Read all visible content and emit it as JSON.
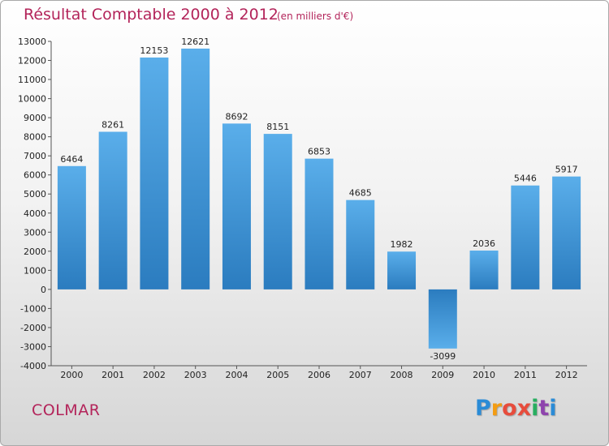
{
  "header": {
    "title": "Résultat Comptable 2000 à 2012",
    "subtitle": "(en milliers d'€)"
  },
  "footer": {
    "city": "COLMAR",
    "logo_letters": [
      "P",
      "r",
      "o",
      "x",
      "i",
      "t",
      "i"
    ],
    "logo_colors": [
      "#2a8bd6",
      "#f39c12",
      "#e74c3c",
      "#e74c3c",
      "#27ae60",
      "#8e44ad",
      "#2a8bd6"
    ]
  },
  "chart_data": {
    "type": "bar",
    "title": "Résultat Comptable 2000 à 2012",
    "subtitle": "(en milliers d'€)",
    "categories": [
      "2000",
      "2001",
      "2002",
      "2003",
      "2004",
      "2005",
      "2006",
      "2007",
      "2008",
      "2009",
      "2010",
      "2011",
      "2012"
    ],
    "values": [
      6464,
      8261,
      12153,
      12621,
      8692,
      8151,
      6853,
      4685,
      1982,
      -3099,
      2036,
      5446,
      5917
    ],
    "ylim": [
      -4000,
      13000
    ],
    "yticks": [
      13000,
      12000,
      11000,
      10000,
      9000,
      8000,
      7000,
      6000,
      5000,
      4000,
      3000,
      2000,
      1000,
      0,
      -1000,
      -2000,
      -3000,
      -4000
    ],
    "grid": false,
    "bar_color_light": "#5aaeea",
    "bar_color_dark": "#2b7cbf"
  }
}
